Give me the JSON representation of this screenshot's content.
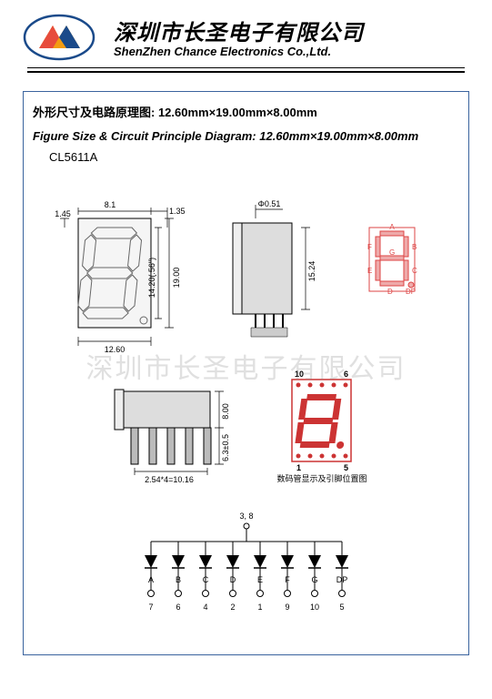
{
  "header": {
    "company_cn": "深圳市长圣电子有限公司",
    "company_en": "ShenZhen Chance Electronics Co.,Ltd."
  },
  "box": {
    "title_cn_prefix": "外形尺寸及电路原理图: ",
    "title_cn_dims": "12.60mm×19.00mm×8.00mm",
    "title_en_prefix": "Figure Size & Circuit Principle Diagram: ",
    "title_en_dims": "12.60mm×19.00mm×8.00mm",
    "part_number": "CL5611A"
  },
  "front_view": {
    "width": "12.60",
    "top_width": "8.1",
    "chamfer": "1.35",
    "side_margin": "1.45",
    "height": "19.00",
    "char_height": "14.20(.56\")"
  },
  "side_view": {
    "thickness": "Φ0.51",
    "pin_area_height": "15.24"
  },
  "bottom_view": {
    "depth": "8.00",
    "pin_length": "6.3±0.5",
    "pitch": "2.54*4=10.16"
  },
  "segment_view": {
    "labels": [
      "A",
      "B",
      "C",
      "D",
      "E",
      "F",
      "G",
      "DP"
    ],
    "color": "#d44"
  },
  "pin_view": {
    "top_left": "10",
    "top_right": "6",
    "bot_left": "1",
    "bot_right": "5",
    "caption": "数码管显示及引脚位置图"
  },
  "circuit": {
    "common_pins": "3, 8",
    "segments": [
      "A",
      "B",
      "C",
      "D",
      "E",
      "F",
      "G",
      "DP"
    ],
    "pins": [
      "7",
      "6",
      "4",
      "2",
      "1",
      "9",
      "10",
      "5"
    ]
  },
  "watermark": "深圳市长圣电子有限公司"
}
